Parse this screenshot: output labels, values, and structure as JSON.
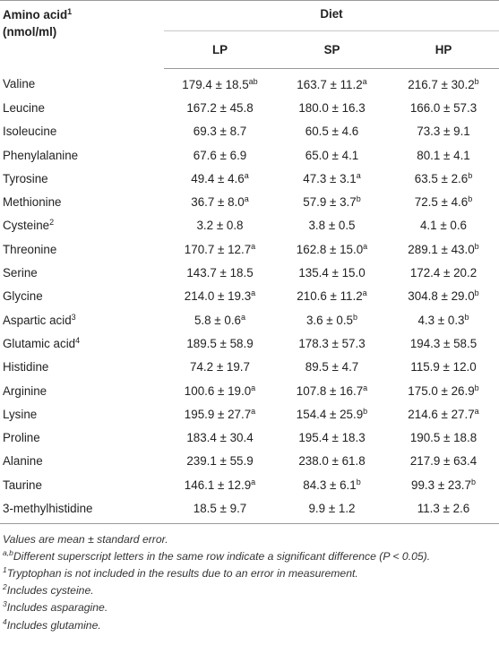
{
  "table": {
    "header_amino": "Amino acid",
    "header_amino_sup": "1",
    "header_unit": "(nmol/ml)",
    "header_group": "Diet",
    "columns": [
      "LP",
      "SP",
      "HP"
    ],
    "rows": [
      {
        "name": "Valine",
        "name_sup": "",
        "cells": [
          {
            "v": "179.4 ± 18.5",
            "s": "ab"
          },
          {
            "v": "163.7 ± 11.2",
            "s": "a"
          },
          {
            "v": "216.7 ± 30.2",
            "s": "b"
          }
        ]
      },
      {
        "name": "Leucine",
        "name_sup": "",
        "cells": [
          {
            "v": "167.2 ± 45.8",
            "s": ""
          },
          {
            "v": "180.0 ± 16.3",
            "s": ""
          },
          {
            "v": "166.0 ± 57.3",
            "s": ""
          }
        ]
      },
      {
        "name": "Isoleucine",
        "name_sup": "",
        "cells": [
          {
            "v": "69.3 ± 8.7",
            "s": ""
          },
          {
            "v": "60.5 ± 4.6",
            "s": ""
          },
          {
            "v": "73.3 ± 9.1",
            "s": ""
          }
        ]
      },
      {
        "name": "Phenylalanine",
        "name_sup": "",
        "cells": [
          {
            "v": "67.6 ± 6.9",
            "s": ""
          },
          {
            "v": "65.0 ± 4.1",
            "s": ""
          },
          {
            "v": "80.1 ± 4.1",
            "s": ""
          }
        ]
      },
      {
        "name": "Tyrosine",
        "name_sup": "",
        "cells": [
          {
            "v": "49.4 ± 4.6",
            "s": "a"
          },
          {
            "v": "47.3 ± 3.1",
            "s": "a"
          },
          {
            "v": "63.5 ± 2.6",
            "s": "b"
          }
        ]
      },
      {
        "name": "Methionine",
        "name_sup": "",
        "cells": [
          {
            "v": "36.7 ± 8.0",
            "s": "a"
          },
          {
            "v": "57.9 ± 3.7",
            "s": "b"
          },
          {
            "v": "72.5 ± 4.6",
            "s": "b"
          }
        ]
      },
      {
        "name": "Cysteine",
        "name_sup": "2",
        "cells": [
          {
            "v": "3.2 ± 0.8",
            "s": ""
          },
          {
            "v": "3.8 ± 0.5",
            "s": ""
          },
          {
            "v": "4.1 ± 0.6",
            "s": ""
          }
        ]
      },
      {
        "name": "Threonine",
        "name_sup": "",
        "cells": [
          {
            "v": "170.7 ± 12.7",
            "s": "a"
          },
          {
            "v": "162.8 ± 15.0",
            "s": "a"
          },
          {
            "v": "289.1 ± 43.0",
            "s": "b"
          }
        ]
      },
      {
        "name": "Serine",
        "name_sup": "",
        "cells": [
          {
            "v": "143.7 ± 18.5",
            "s": ""
          },
          {
            "v": "135.4 ± 15.0",
            "s": ""
          },
          {
            "v": "172.4 ± 20.2",
            "s": ""
          }
        ]
      },
      {
        "name": "Glycine",
        "name_sup": "",
        "cells": [
          {
            "v": "214.0 ± 19.3",
            "s": "a"
          },
          {
            "v": "210.6 ± 11.2",
            "s": "a"
          },
          {
            "v": "304.8 ± 29.0",
            "s": "b"
          }
        ]
      },
      {
        "name": "Aspartic acid",
        "name_sup": "3",
        "cells": [
          {
            "v": "5.8 ± 0.6",
            "s": "a"
          },
          {
            "v": "3.6 ± 0.5",
            "s": "b"
          },
          {
            "v": "4.3 ± 0.3",
            "s": "b"
          }
        ]
      },
      {
        "name": "Glutamic acid",
        "name_sup": "4",
        "cells": [
          {
            "v": "189.5 ± 58.9",
            "s": ""
          },
          {
            "v": "178.3 ± 57.3",
            "s": ""
          },
          {
            "v": "194.3 ± 58.5",
            "s": ""
          }
        ]
      },
      {
        "name": "Histidine",
        "name_sup": "",
        "cells": [
          {
            "v": "74.2 ± 19.7",
            "s": ""
          },
          {
            "v": "89.5 ± 4.7",
            "s": ""
          },
          {
            "v": "115.9 ± 12.0",
            "s": ""
          }
        ]
      },
      {
        "name": "Arginine",
        "name_sup": "",
        "cells": [
          {
            "v": "100.6 ± 19.0",
            "s": "a"
          },
          {
            "v": "107.8 ± 16.7",
            "s": "a"
          },
          {
            "v": "175.0 ± 26.9",
            "s": "b"
          }
        ]
      },
      {
        "name": "Lysine",
        "name_sup": "",
        "cells": [
          {
            "v": "195.9 ± 27.7",
            "s": "a"
          },
          {
            "v": "154.4 ± 25.9",
            "s": "b"
          },
          {
            "v": "214.6 ± 27.7",
            "s": "a"
          }
        ]
      },
      {
        "name": "Proline",
        "name_sup": "",
        "cells": [
          {
            "v": "183.4 ± 30.4",
            "s": ""
          },
          {
            "v": "195.4 ± 18.3",
            "s": ""
          },
          {
            "v": "190.5 ± 18.8",
            "s": ""
          }
        ]
      },
      {
        "name": "Alanine",
        "name_sup": "",
        "cells": [
          {
            "v": "239.1 ± 55.9",
            "s": ""
          },
          {
            "v": "238.0 ± 61.8",
            "s": ""
          },
          {
            "v": "217.9 ± 63.4",
            "s": ""
          }
        ]
      },
      {
        "name": "Taurine",
        "name_sup": "",
        "cells": [
          {
            "v": "146.1 ± 12.9",
            "s": "a"
          },
          {
            "v": "84.3 ± 6.1",
            "s": "b"
          },
          {
            "v": "99.3 ± 23.7",
            "s": "b"
          }
        ]
      },
      {
        "name": "3-methylhistidine",
        "name_sup": "",
        "cells": [
          {
            "v": "18.5 ± 9.7",
            "s": ""
          },
          {
            "v": "9.9 ± 1.2",
            "s": ""
          },
          {
            "v": "11.3 ± 2.6",
            "s": ""
          }
        ]
      }
    ]
  },
  "notes": [
    {
      "sup": "",
      "text": "Values are mean ± standard error."
    },
    {
      "sup": "a,b",
      "text": "Different superscript letters in the same row indicate a significant difference (P < 0.05)."
    },
    {
      "sup": "1",
      "text": "Tryptophan is not included in the results due to an error in measurement."
    },
    {
      "sup": "2",
      "text": "Includes cysteine."
    },
    {
      "sup": "3",
      "text": "Includes asparagine."
    },
    {
      "sup": "4",
      "text": "Includes glutamine."
    }
  ]
}
